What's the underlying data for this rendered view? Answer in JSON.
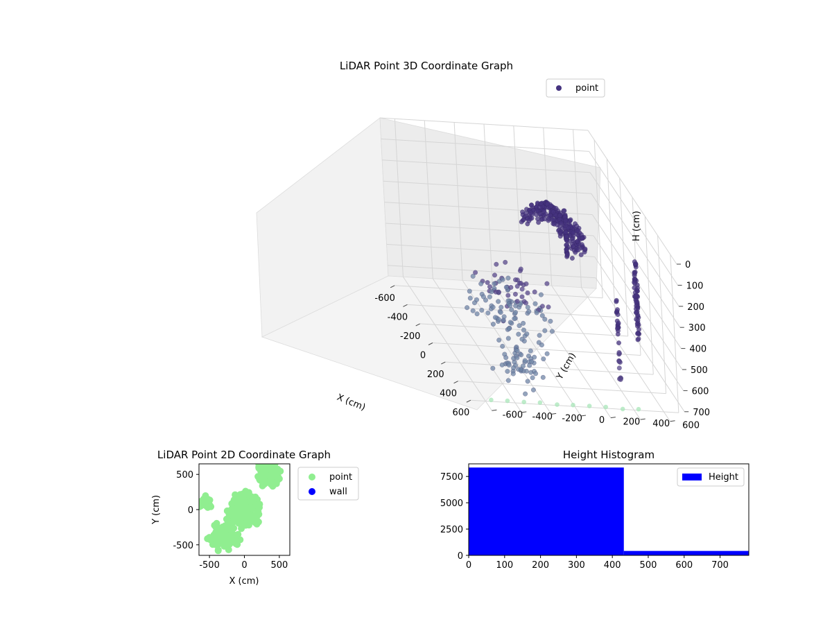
{
  "chart_data": [
    {
      "type": "scatter3d",
      "title": "LiDAR Point 3D Coordinate Graph",
      "xlabel": "X (cm)",
      "ylabel": "Y (cm)",
      "zlabel": "H (cm)",
      "xlim": [
        -700,
        700
      ],
      "ylim": [
        -700,
        700
      ],
      "zlim": [
        750,
        0
      ],
      "xticks": [
        "-600",
        "-400",
        "-200",
        "0",
        "200",
        "400",
        "600"
      ],
      "yticks": [
        "-600",
        "-400",
        "-200",
        "0",
        "200",
        "400",
        "600"
      ],
      "zticks": [
        "0",
        "100",
        "200",
        "300",
        "400",
        "500",
        "600",
        "700"
      ],
      "legend": {
        "entries": [
          "point"
        ],
        "placement": "top-right"
      },
      "grid": true,
      "series": [
        {
          "name": "point",
          "color": "#45337f",
          "clusters": [
            {
              "x": 0,
              "y": 120,
              "h_min": 40,
              "h_max": 260,
              "r": 230,
              "n": 260,
              "shape": "dome"
            },
            {
              "x": 100,
              "y": 200,
              "h_min": 20,
              "h_max": 260,
              "r": 0,
              "n": 40,
              "shape": "column"
            },
            {
              "x": 500,
              "y": 500,
              "h_min": 80,
              "h_max": 480,
              "r": 0,
              "n": 30,
              "shape": "column"
            },
            {
              "x": 600,
              "y": 450,
              "h_min": 80,
              "h_max": 420,
              "r": 0,
              "n": 30,
              "shape": "column"
            },
            {
              "x": 650,
              "y": 300,
              "h_min": 200,
              "h_max": 600,
              "r": 0,
              "n": 30,
              "shape": "column"
            },
            {
              "x": -200,
              "y": -100,
              "h_min": 500,
              "h_max": 720,
              "r": 350,
              "n": 120,
              "shape": "scatter"
            },
            {
              "x": 300,
              "y": -250,
              "h_min": 600,
              "h_max": 760,
              "r": 250,
              "n": 60,
              "shape": "scatter"
            }
          ]
        }
      ]
    },
    {
      "type": "scatter",
      "title": "LiDAR Point 2D Coordinate Graph",
      "xlabel": "X (cm)",
      "ylabel": "Y (cm)",
      "xlim": [
        -650,
        650
      ],
      "ylim": [
        -650,
        650
      ],
      "xticks": [
        "-500",
        "0",
        "500"
      ],
      "yticks": [
        "-500",
        "0",
        "500"
      ],
      "legend": {
        "entries": [
          "point",
          "wall"
        ],
        "placement": "outside-right"
      },
      "series": [
        {
          "name": "point",
          "color": "#90ee90",
          "clusters": [
            {
              "x": 0,
              "y": 0,
              "r": 300,
              "n": 220
            },
            {
              "x": 350,
              "y": 500,
              "r": 250,
              "n": 90
            },
            {
              "x": -300,
              "y": -350,
              "r": 300,
              "n": 120
            },
            {
              "x": -550,
              "y": 100,
              "r": 120,
              "n": 30
            }
          ]
        },
        {
          "name": "wall",
          "color": "#0000ff",
          "clusters": []
        }
      ]
    },
    {
      "type": "bar",
      "title": "Height Histogram",
      "xlabel": "",
      "ylabel": "",
      "xlim": [
        0,
        780
      ],
      "ylim": [
        0,
        8700
      ],
      "xticks": [
        "0",
        "100",
        "200",
        "300",
        "400",
        "500",
        "600",
        "700"
      ],
      "yticks": [
        "0",
        "2500",
        "5000",
        "7500"
      ],
      "legend": {
        "entries": [
          "Height"
        ],
        "placement": "top-right"
      },
      "series": [
        {
          "name": "Height",
          "color": "#0000ff",
          "bins": [
            {
              "x0": 0,
              "x1": 432,
              "count": 8350
            },
            {
              "x0": 432,
              "x1": 780,
              "count": 420
            }
          ]
        }
      ]
    }
  ]
}
